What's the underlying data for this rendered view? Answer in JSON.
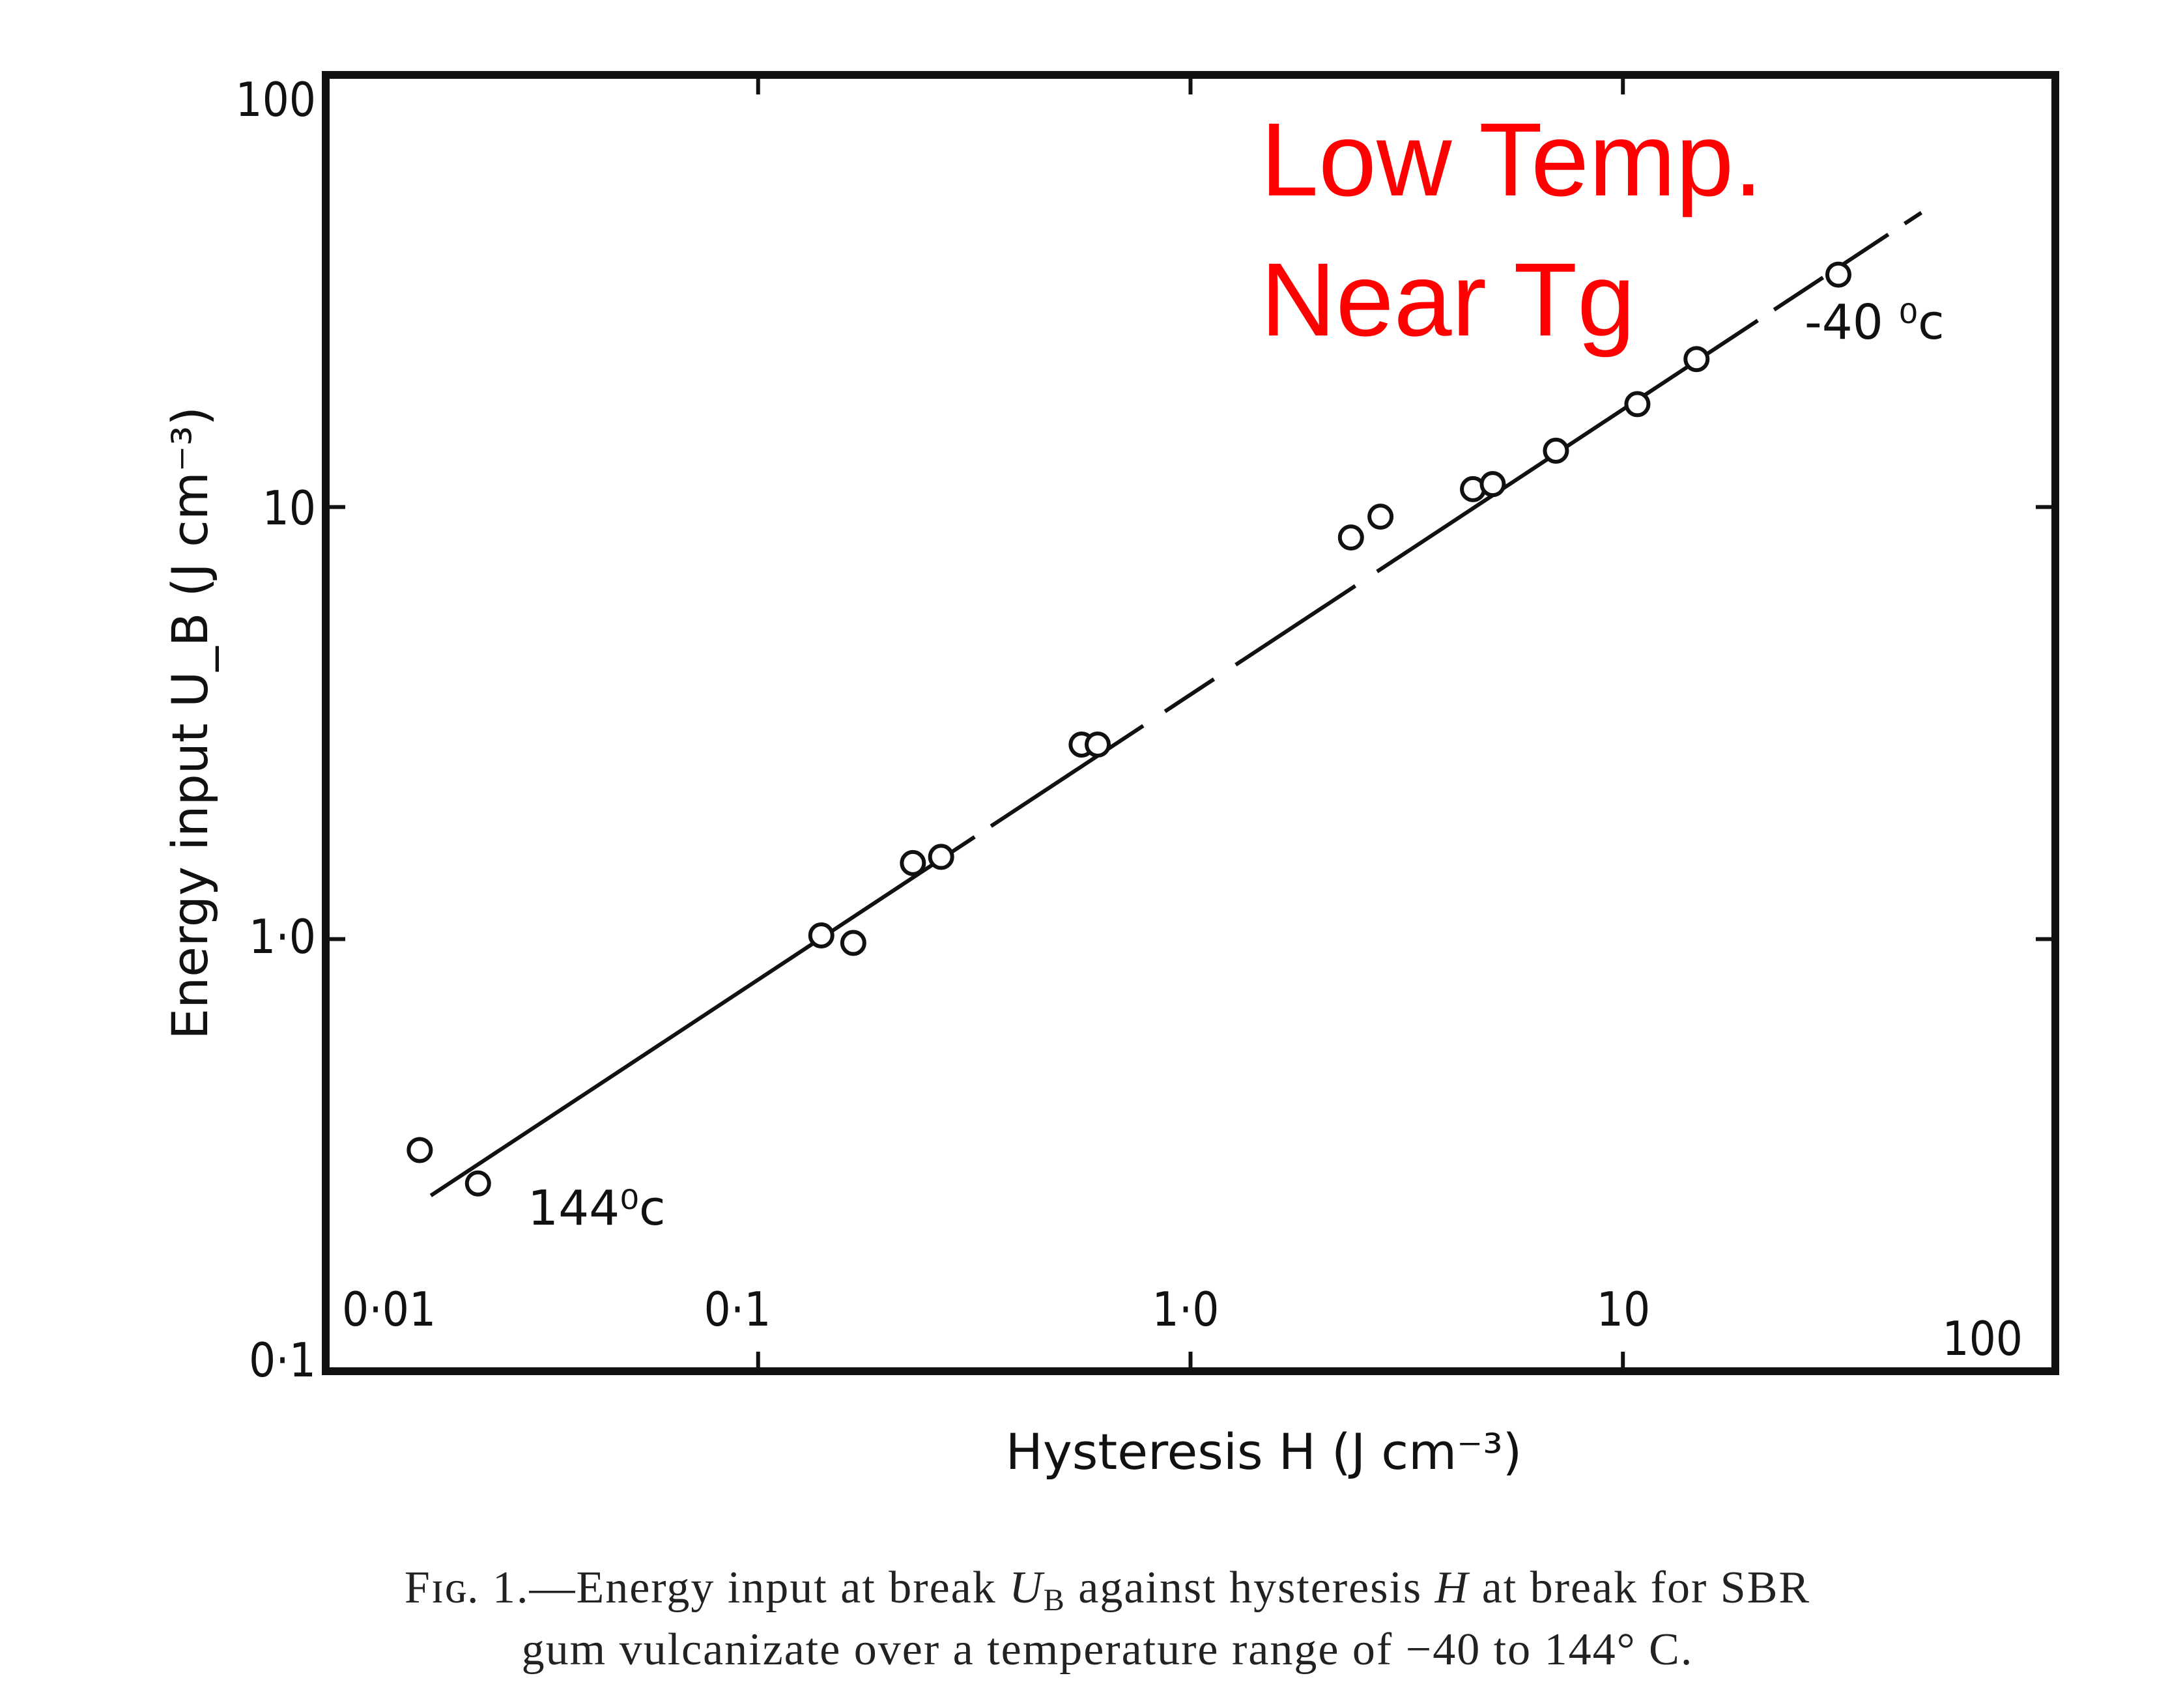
{
  "chart_data": {
    "type": "scatter",
    "x_scale": "log",
    "y_scale": "log",
    "xlim": [
      0.01,
      100
    ],
    "ylim": [
      0.1,
      100
    ],
    "xlabel": "Hysteresis H (J cm⁻³)",
    "ylabel": "Energy input U_B (J cm⁻³)",
    "x_tick_labels": [
      "0·01",
      "0·1",
      "1·0",
      "10",
      "100"
    ],
    "y_tick_labels": [
      "0·1",
      "1·0",
      "10",
      "100"
    ],
    "grid": false,
    "series": [
      {
        "points": [
          {
            "x": 0.0165,
            "y": 0.325
          },
          {
            "x": 0.0225,
            "y": 0.272
          },
          {
            "x": 0.14,
            "y": 1.02
          },
          {
            "x": 0.166,
            "y": 0.98
          },
          {
            "x": 0.228,
            "y": 1.5
          },
          {
            "x": 0.265,
            "y": 1.55
          },
          {
            "x": 0.56,
            "y": 2.82
          },
          {
            "x": 0.61,
            "y": 2.82
          },
          {
            "x": 2.35,
            "y": 8.5
          },
          {
            "x": 2.75,
            "y": 9.5
          },
          {
            "x": 4.5,
            "y": 11.0
          },
          {
            "x": 5.0,
            "y": 11.3
          },
          {
            "x": 7.0,
            "y": 13.5
          },
          {
            "x": 10.8,
            "y": 17.3
          },
          {
            "x": 14.8,
            "y": 22.0
          },
          {
            "x": 31.5,
            "y": 34.5
          }
        ]
      }
    ],
    "fit_line": {
      "x": [
        0.0175,
        49
      ],
      "y": [
        0.255,
        48
      ]
    },
    "annotations": [
      {
        "text": "144⁰c",
        "x": 0.0232,
        "y": 0.24
      },
      {
        "text": "-40 ⁰c",
        "x": 32,
        "y": 30
      }
    ]
  },
  "overlay": {
    "line1": "Low Temp.",
    "line2": "Near Tg",
    "color": "#ff0000"
  },
  "caption": {
    "line1_prefix": "Fɪɢ. 1.—Energy input at break ",
    "line1_sym1": "U",
    "line1_sub": "B",
    "line1_mid": " against hysteresis ",
    "line1_sym2": "H",
    "line1_suffix": " at break for SBR",
    "line2": "gum vulcanizate over a temperature range of −40 to 144° C."
  }
}
